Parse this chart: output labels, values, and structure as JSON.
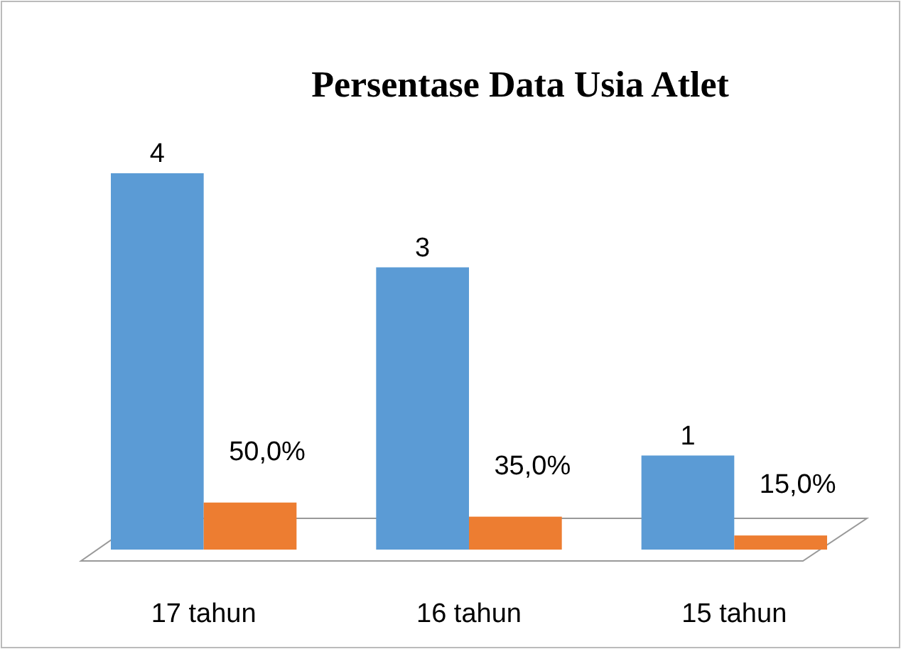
{
  "chart_data": {
    "type": "bar",
    "title": "Persentase Data Usia Atlet",
    "categories": [
      "17 tahun",
      "16 tahun",
      "15 tahun"
    ],
    "series": [
      {
        "color": "#5b9bd5",
        "values": [
          4,
          3,
          1
        ],
        "value_labels": [
          "4",
          "3",
          "1"
        ]
      },
      {
        "color": "#ed7d31",
        "values": [
          0.5,
          0.35,
          0.15
        ],
        "value_labels": [
          "50,0%",
          "35,0%",
          "15,0%"
        ]
      }
    ]
  }
}
